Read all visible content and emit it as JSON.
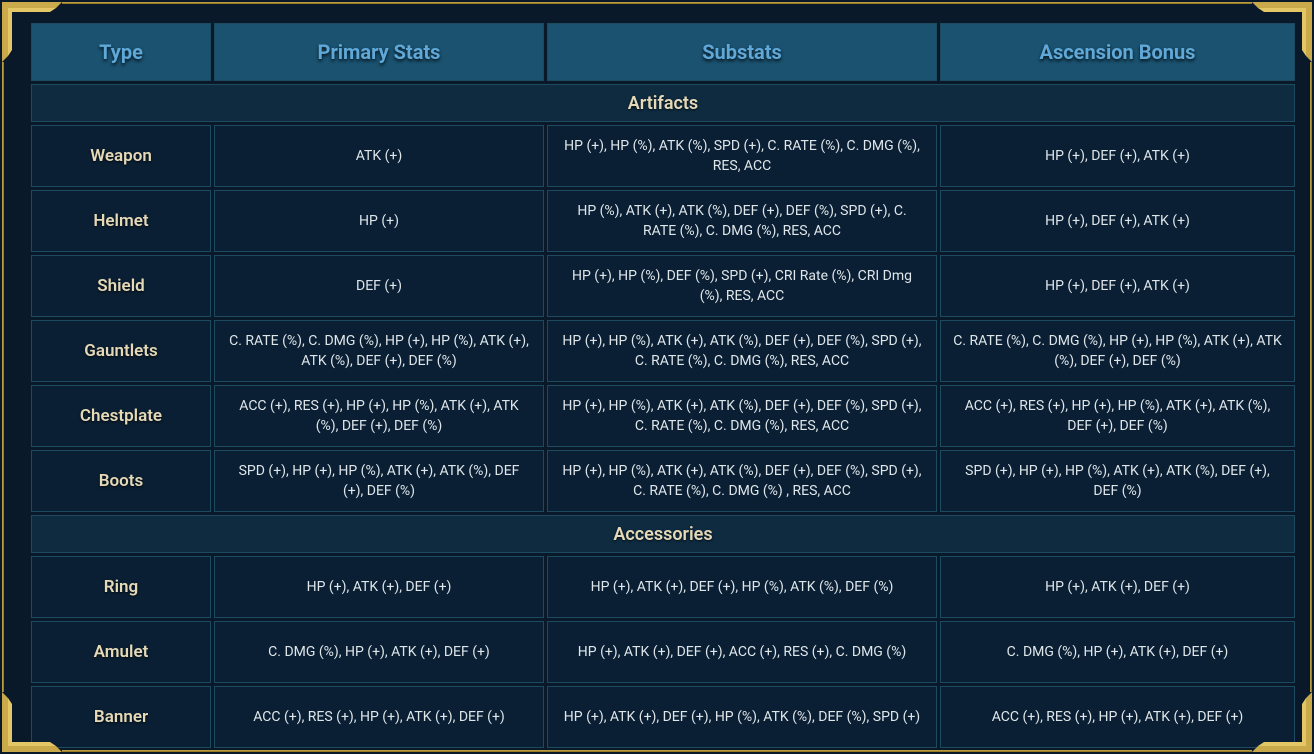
{
  "headers": {
    "type": "Type",
    "primary": "Primary Stats",
    "substats": "Substats",
    "ascension": "Ascension Bonus"
  },
  "sections": {
    "artifacts": "Artifacts",
    "accessories": "Accessories"
  },
  "artifacts": [
    {
      "type": "Weapon",
      "primary": "ATK (+)",
      "substats": "HP (+), HP (%), ATK (%), SPD (+), C. RATE (%), C. DMG (%), RES, ACC",
      "ascension": "HP (+), DEF (+), ATK (+)"
    },
    {
      "type": "Helmet",
      "primary": "HP (+)",
      "substats": "HP (%), ATK (+), ATK (%), DEF (+), DEF (%), SPD (+), C. RATE (%), C. DMG (%), RES, ACC",
      "ascension": "HP (+), DEF (+), ATK (+)"
    },
    {
      "type": "Shield",
      "primary": "DEF (+)",
      "substats": "HP (+), HP (%), DEF (%), SPD (+), CRI Rate (%), CRI Dmg (%), RES, ACC",
      "ascension": "HP (+), DEF (+), ATK (+)"
    },
    {
      "type": "Gauntlets",
      "primary": "C. RATE (%), C. DMG (%), HP (+), HP (%), ATK (+), ATK (%), DEF (+), DEF (%)",
      "substats": "HP (+), HP (%), ATK (+), ATK (%), DEF (+), DEF (%), SPD (+), C. RATE (%), C. DMG (%), RES, ACC",
      "ascension": "C. RATE (%), C. DMG (%), HP (+), HP (%), ATK (+), ATK (%), DEF (+), DEF (%)"
    },
    {
      "type": "Chestplate",
      "primary": "ACC (+), RES (+), HP (+), HP (%), ATK (+), ATK (%), DEF (+), DEF (%)",
      "substats": "HP (+), HP (%), ATK (+), ATK (%), DEF (+), DEF (%), SPD (+), C. RATE (%), C. DMG (%), RES, ACC",
      "ascension": "ACC (+), RES (+), HP (+), HP (%), ATK (+), ATK (%), DEF (+), DEF (%)"
    },
    {
      "type": "Boots",
      "primary": "SPD (+), HP (+), HP (%), ATK (+), ATK (%), DEF (+), DEF (%)",
      "substats": "HP (+), HP (%), ATK (+), ATK (%), DEF (+), DEF (%), SPD (+), C. RATE (%), C. DMG (%) , RES, ACC",
      "ascension": "SPD (+), HP (+), HP (%), ATK (+), ATK (%), DEF (+), DEF (%)"
    }
  ],
  "accessories": [
    {
      "type": "Ring",
      "primary": "HP (+), ATK (+), DEF (+)",
      "substats": "HP (+), ATK (+), DEF (+), HP (%), ATK (%), DEF (%)",
      "ascension": "HP (+), ATK (+), DEF (+)"
    },
    {
      "type": "Amulet",
      "primary": "C. DMG (%), HP (+), ATK (+), DEF (+)",
      "substats": "HP (+), ATK (+), DEF (+), ACC (+), RES (+), C. DMG (%)",
      "ascension": "C. DMG (%), HP (+), ATK (+), DEF (+)"
    },
    {
      "type": "Banner",
      "primary": "ACC (+), RES (+), HP (+), ATK (+), DEF (+)",
      "substats": "HP (+), ATK (+), DEF (+), HP (%), ATK (%), DEF (%), SPD (+)",
      "ascension": "ACC (+), RES (+), HP (+), ATK (+), DEF (+)"
    }
  ],
  "colors": {
    "frame_bg": "#0a1929",
    "cell_bg": "#0a1f33",
    "header_bg": "#1a5270",
    "section_bg": "#0e2b40",
    "border": "#1e4a5f",
    "header_text": "#5fa8d8",
    "type_text": "#e5d9b8",
    "data_text": "#dfe6ea",
    "gold_light": "#e3c766",
    "gold_dark": "#8a6f1e"
  }
}
